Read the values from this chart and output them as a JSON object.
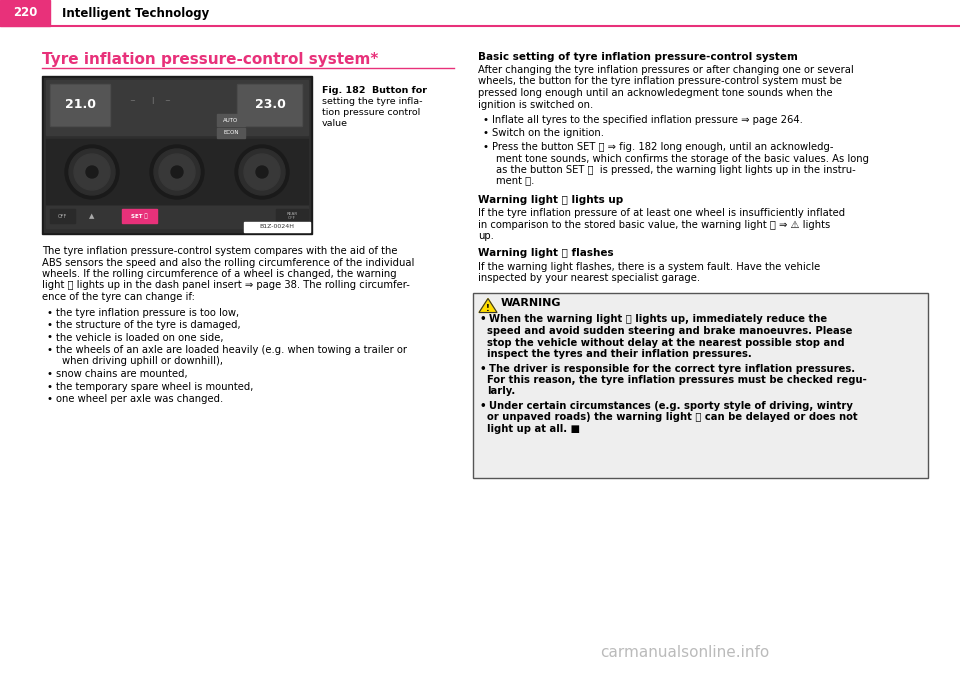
{
  "page_number": "220",
  "chapter_title": "Intelligent Technology",
  "header_bar_color": "#E8317A",
  "header_line_color": "#E8317A",
  "section_title": "Tyre inflation pressure-control system*",
  "section_title_color": "#E8317A",
  "section_underline_color": "#E8317A",
  "fig_caption": "Fig. 182  Button for\nsetting the tyre infla-\ntion pressure control\nvalue",
  "fig_label": "B1Z-0024H",
  "body_text_left": "The tyre inflation pressure-control system compares with the aid of the\nABS sensors the speed and also the rolling circumference of the individual\nwheels. If the rolling circumference of a wheel is changed, the warning\nlight Ⓤ lights up in the dash panel insert ⇒ page 38. The rolling circumfer-\nence of the tyre can change if:",
  "bullet_items_left": [
    "the tyre inflation pressure is too low,",
    "the structure of the tyre is damaged,",
    "the vehicle is loaded on one side,",
    "the wheels of an axle are loaded heavily (e.g. when towing a trailer or\n    when driving uphill or downhill),",
    "snow chains are mounted,",
    "the temporary spare wheel is mounted,",
    "one wheel per axle was changed."
  ],
  "right_col_title1": "Basic setting of tyre inflation pressure-control system",
  "right_col_text1": "After changing the tyre inflation pressures or after changing one or several\nwheels, the button for the tyre inflation pressure-control system must be\npressed long enough until an acknowledegment tone sounds when the\nignition is switched on.",
  "right_col_bullets1": [
    "Inflate all tyres to the specified inflation pressure ⇒ page 264.",
    "Switch on the ignition.",
    "Press the button SET Ⓤ ⇒ fig. 182 long enough, until an acknowledg-\n    ment tone sounds, which confirms the storage of the basic values. As long\n    as the button SET Ⓤ  is pressed, the warning light lights up in the instru-\n    ment Ⓤ."
  ],
  "right_col_title2": "Warning light Ⓤ lights up",
  "right_col_text2": "If the tyre inflation pressure of at least one wheel is insufficiently inflated\nin comparison to the stored basic value, the warning light Ⓤ ⇒ ⚠ lights\nup.",
  "right_col_title3": "Warning light Ⓤ flashes",
  "right_col_text3": "If the warning light flashes, there is a system fault. Have the vehicle\ninspected by your nearest specialist garage.",
  "warning_title": "WARNING",
  "warning_bullet1_bold": "When the warning light Ⓤ lights up, immediately reduce the\nspeed and avoid sudden steering and brake manoeuvres. Please\nstop the vehicle without delay at the nearest possible stop and\ninspect the tyres and their inflation pressures.",
  "warning_bullet2_bold": "The driver is responsible for the correct tyre inflation pressures.\nFor this reason, the tyre inflation pressures must be checked regu-\nlarly.",
  "warning_bullet3": "Under certain circumstances (e.g. sporty style of driving, wintry\nor unpaved roads) the warning light Ⓤ can be delayed or does not\nlight up at all. ■",
  "warning_box_color": "#eeeeee",
  "warning_border_color": "#555555",
  "watermark_text": "carmanualsonline.info",
  "watermark_color": "#bbbbbb",
  "background_color": "#ffffff",
  "text_color": "#000000"
}
